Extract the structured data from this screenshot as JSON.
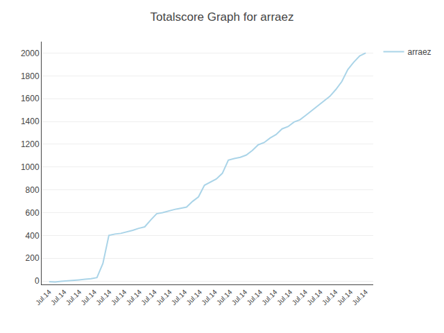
{
  "chart_data": {
    "type": "line",
    "title": "Totalscore Graph for arraez",
    "x": [
      0,
      0.396226,
      0.792453,
      1.188679,
      1.584906,
      1.981132,
      2.377358,
      2.773585,
      3.169811,
      3.566038,
      3.962264,
      4.358491,
      4.754717,
      5.150943,
      5.54717,
      5.943396,
      6.339623,
      6.735849,
      7.132075,
      7.528302,
      7.924528,
      8.320755,
      8.716981,
      9.113208,
      9.509434,
      9.90566,
      10.301887,
      10.698113,
      11.09434,
      11.490566,
      11.886792,
      12.283019,
      12.679245,
      13.075472,
      13.471698,
      13.867925,
      14.264151,
      14.660377,
      15.056604,
      15.45283,
      15.849057,
      16.245283,
      16.641509,
      17.037736,
      17.433962,
      17.830189,
      18.226415,
      18.622642,
      19.018868,
      19.415094,
      19.811321,
      20.207547,
      20.603774,
      21
    ],
    "series": [
      {
        "name": "arraez",
        "color": "#aad4e8",
        "values": [
          -5,
          -8,
          -3,
          0,
          5,
          10,
          15,
          20,
          30,
          155,
          400,
          412,
          418,
          430,
          445,
          462,
          475,
          535,
          590,
          600,
          615,
          628,
          638,
          648,
          698,
          738,
          840,
          865,
          895,
          945,
          1060,
          1075,
          1085,
          1105,
          1145,
          1195,
          1215,
          1255,
          1285,
          1335,
          1355,
          1395,
          1415,
          1455,
          1495,
          1540,
          1580,
          1620,
          1680,
          1750,
          1855,
          1920,
          1975,
          2000
        ]
      }
    ],
    "xlim": [
      -0.5,
      21.5
    ],
    "xticks": [
      {
        "value": 0,
        "label": "Jul.14"
      },
      {
        "value": 1,
        "label": "Jul.14"
      },
      {
        "value": 2,
        "label": "Jul.14"
      },
      {
        "value": 3,
        "label": "Jul.14"
      },
      {
        "value": 4,
        "label": "Jul.14"
      },
      {
        "value": 5,
        "label": "Jul.14"
      },
      {
        "value": 6,
        "label": "Jul.14"
      },
      {
        "value": 7,
        "label": "Jul.14"
      },
      {
        "value": 8,
        "label": "Jul.14"
      },
      {
        "value": 9,
        "label": "Jul.14"
      },
      {
        "value": 10,
        "label": "Jul.14"
      },
      {
        "value": 11,
        "label": "Jul.14"
      },
      {
        "value": 12,
        "label": "Jul.14"
      },
      {
        "value": 13,
        "label": "Jul.14"
      },
      {
        "value": 14,
        "label": "Jul.14"
      },
      {
        "value": 15,
        "label": "Jul.14"
      },
      {
        "value": 16,
        "label": "Jul.14"
      },
      {
        "value": 17,
        "label": "Jul.14"
      },
      {
        "value": 18,
        "label": "Jul.14"
      },
      {
        "value": 19,
        "label": "Jul.14"
      },
      {
        "value": 20,
        "label": "Jul.14"
      },
      {
        "value": 21,
        "label": "Jul.14"
      }
    ],
    "ylim": [
      -30,
      2100
    ],
    "yticks": [
      0,
      200,
      400,
      600,
      800,
      1000,
      1200,
      1400,
      1600,
      1800,
      2000
    ],
    "grid": true,
    "legend": "upper right"
  }
}
